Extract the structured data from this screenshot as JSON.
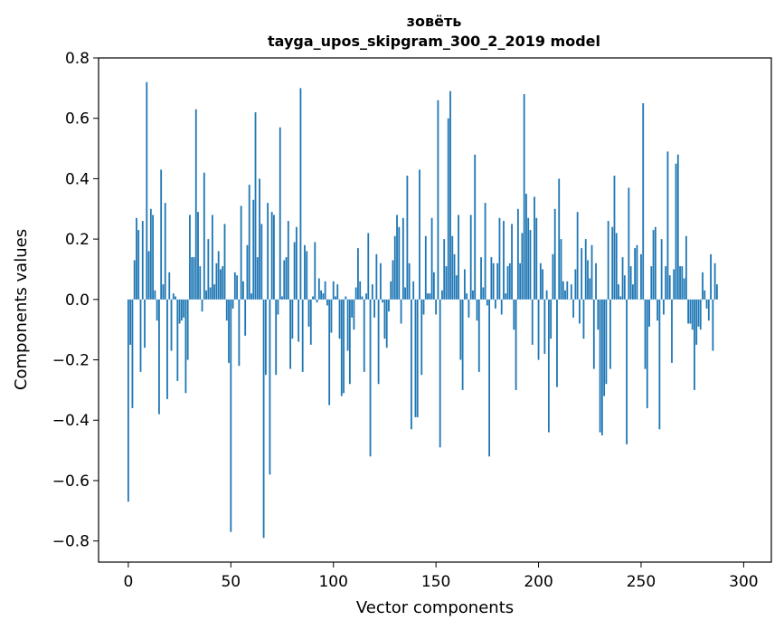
{
  "chart_data": {
    "type": "bar",
    "title_line1": "зовёть",
    "title_line2": "tayga_upos_skipgram_300_2_2019 model",
    "xlabel": "Vector components",
    "ylabel": "Components values",
    "xlim": [
      -14.5,
      313.5
    ],
    "ylim": [
      -0.87,
      0.8
    ],
    "x_ticks": [
      0,
      50,
      100,
      150,
      200,
      250,
      300
    ],
    "y_ticks": [
      0.8,
      0.6,
      0.4,
      0.2,
      0.0,
      -0.2,
      -0.4,
      -0.6,
      -0.8
    ],
    "y_tick_labels": [
      "0.8",
      "0.6",
      "0.4",
      "0.2",
      "0.0",
      "−0.2",
      "−0.4",
      "−0.6",
      "−0.8"
    ],
    "bar_color": "#1f77b4",
    "values": [
      -0.67,
      -0.15,
      -0.36,
      0.13,
      0.27,
      0.23,
      -0.24,
      0.26,
      -0.16,
      0.72,
      0.16,
      0.3,
      0.28,
      0.03,
      -0.07,
      -0.38,
      0.43,
      0.05,
      0.32,
      -0.33,
      0.09,
      -0.17,
      0.02,
      0.01,
      -0.27,
      -0.08,
      -0.07,
      -0.06,
      -0.31,
      -0.2,
      0.28,
      0.14,
      0.14,
      0.63,
      0.29,
      0.11,
      -0.04,
      0.42,
      0.03,
      0.2,
      0.04,
      0.28,
      0.05,
      0.12,
      0.16,
      0.1,
      0.11,
      0.25,
      -0.07,
      -0.21,
      -0.77,
      -0.03,
      0.09,
      0.08,
      -0.22,
      0.31,
      0.06,
      -0.12,
      0.18,
      0.38,
      0.02,
      0.33,
      0.62,
      0.14,
      0.4,
      0.25,
      -0.79,
      -0.25,
      0.32,
      -0.58,
      0.29,
      0.28,
      -0.25,
      -0.05,
      0.57,
      0.01,
      0.13,
      0.14,
      0.26,
      -0.23,
      -0.13,
      0.19,
      0.24,
      -0.14,
      0.7,
      -0.24,
      0.18,
      0.16,
      -0.09,
      -0.15,
      0.01,
      0.19,
      -0.01,
      0.07,
      0.03,
      0.02,
      0.06,
      -0.02,
      -0.35,
      -0.11,
      0.06,
      0.01,
      0.05,
      -0.13,
      -0.32,
      -0.31,
      0.01,
      -0.17,
      -0.28,
      -0.06,
      -0.1,
      0.04,
      0.17,
      0.06,
      0.01,
      -0.24,
      0.02,
      0.22,
      -0.52,
      0.05,
      -0.06,
      0.15,
      -0.28,
      0.12,
      -0.01,
      -0.13,
      -0.16,
      -0.04,
      0.06,
      0.13,
      0.21,
      0.28,
      0.24,
      -0.08,
      0.27,
      0.04,
      0.41,
      0.12,
      -0.43,
      0.06,
      -0.39,
      -0.39,
      0.43,
      -0.25,
      -0.05,
      0.21,
      0.02,
      0.02,
      0.27,
      0.09,
      -0.05,
      0.66,
      -0.49,
      0.03,
      0.2,
      0.11,
      0.6,
      0.69,
      0.21,
      0.15,
      0.08,
      0.28,
      -0.2,
      -0.3,
      0.1,
      0.02,
      -0.06,
      0.28,
      0.03,
      0.48,
      -0.07,
      -0.24,
      0.14,
      0.04,
      0.32,
      -0.02,
      -0.52,
      0.14,
      0.12,
      -0.03,
      0.12,
      0.27,
      -0.05,
      0.26,
      0.02,
      0.11,
      0.12,
      0.25,
      -0.1,
      -0.3,
      0.3,
      0.12,
      0.22,
      0.68,
      0.35,
      0.27,
      0.23,
      -0.15,
      0.34,
      0.27,
      -0.2,
      0.12,
      0.1,
      -0.18,
      0.03,
      -0.44,
      -0.13,
      0.15,
      0.3,
      -0.29,
      0.4,
      0.2,
      0.06,
      0.03,
      0.06,
      0.0,
      0.05,
      -0.06,
      0.1,
      0.29,
      -0.08,
      0.17,
      -0.13,
      0.2,
      0.13,
      0.07,
      0.18,
      -0.23,
      0.12,
      -0.1,
      -0.44,
      -0.45,
      -0.32,
      -0.28,
      0.26,
      -0.23,
      0.24,
      0.41,
      0.22,
      0.05,
      0.01,
      0.14,
      0.08,
      -0.48,
      0.37,
      0.11,
      0.05,
      0.17,
      0.18,
      0.0,
      0.15,
      0.65,
      -0.23,
      -0.36,
      -0.09,
      0.11,
      0.23,
      0.24,
      -0.07,
      -0.43,
      0.2,
      -0.05,
      0.11,
      0.49,
      0.08,
      -0.21,
      0.1,
      0.45,
      0.48,
      0.11,
      0.11,
      0.07,
      0.21,
      -0.08,
      -0.08,
      -0.1,
      -0.3,
      -0.15,
      -0.09,
      -0.1,
      0.09,
      0.03,
      -0.03,
      -0.07,
      0.15,
      -0.17,
      0.12,
      0.05
    ]
  }
}
